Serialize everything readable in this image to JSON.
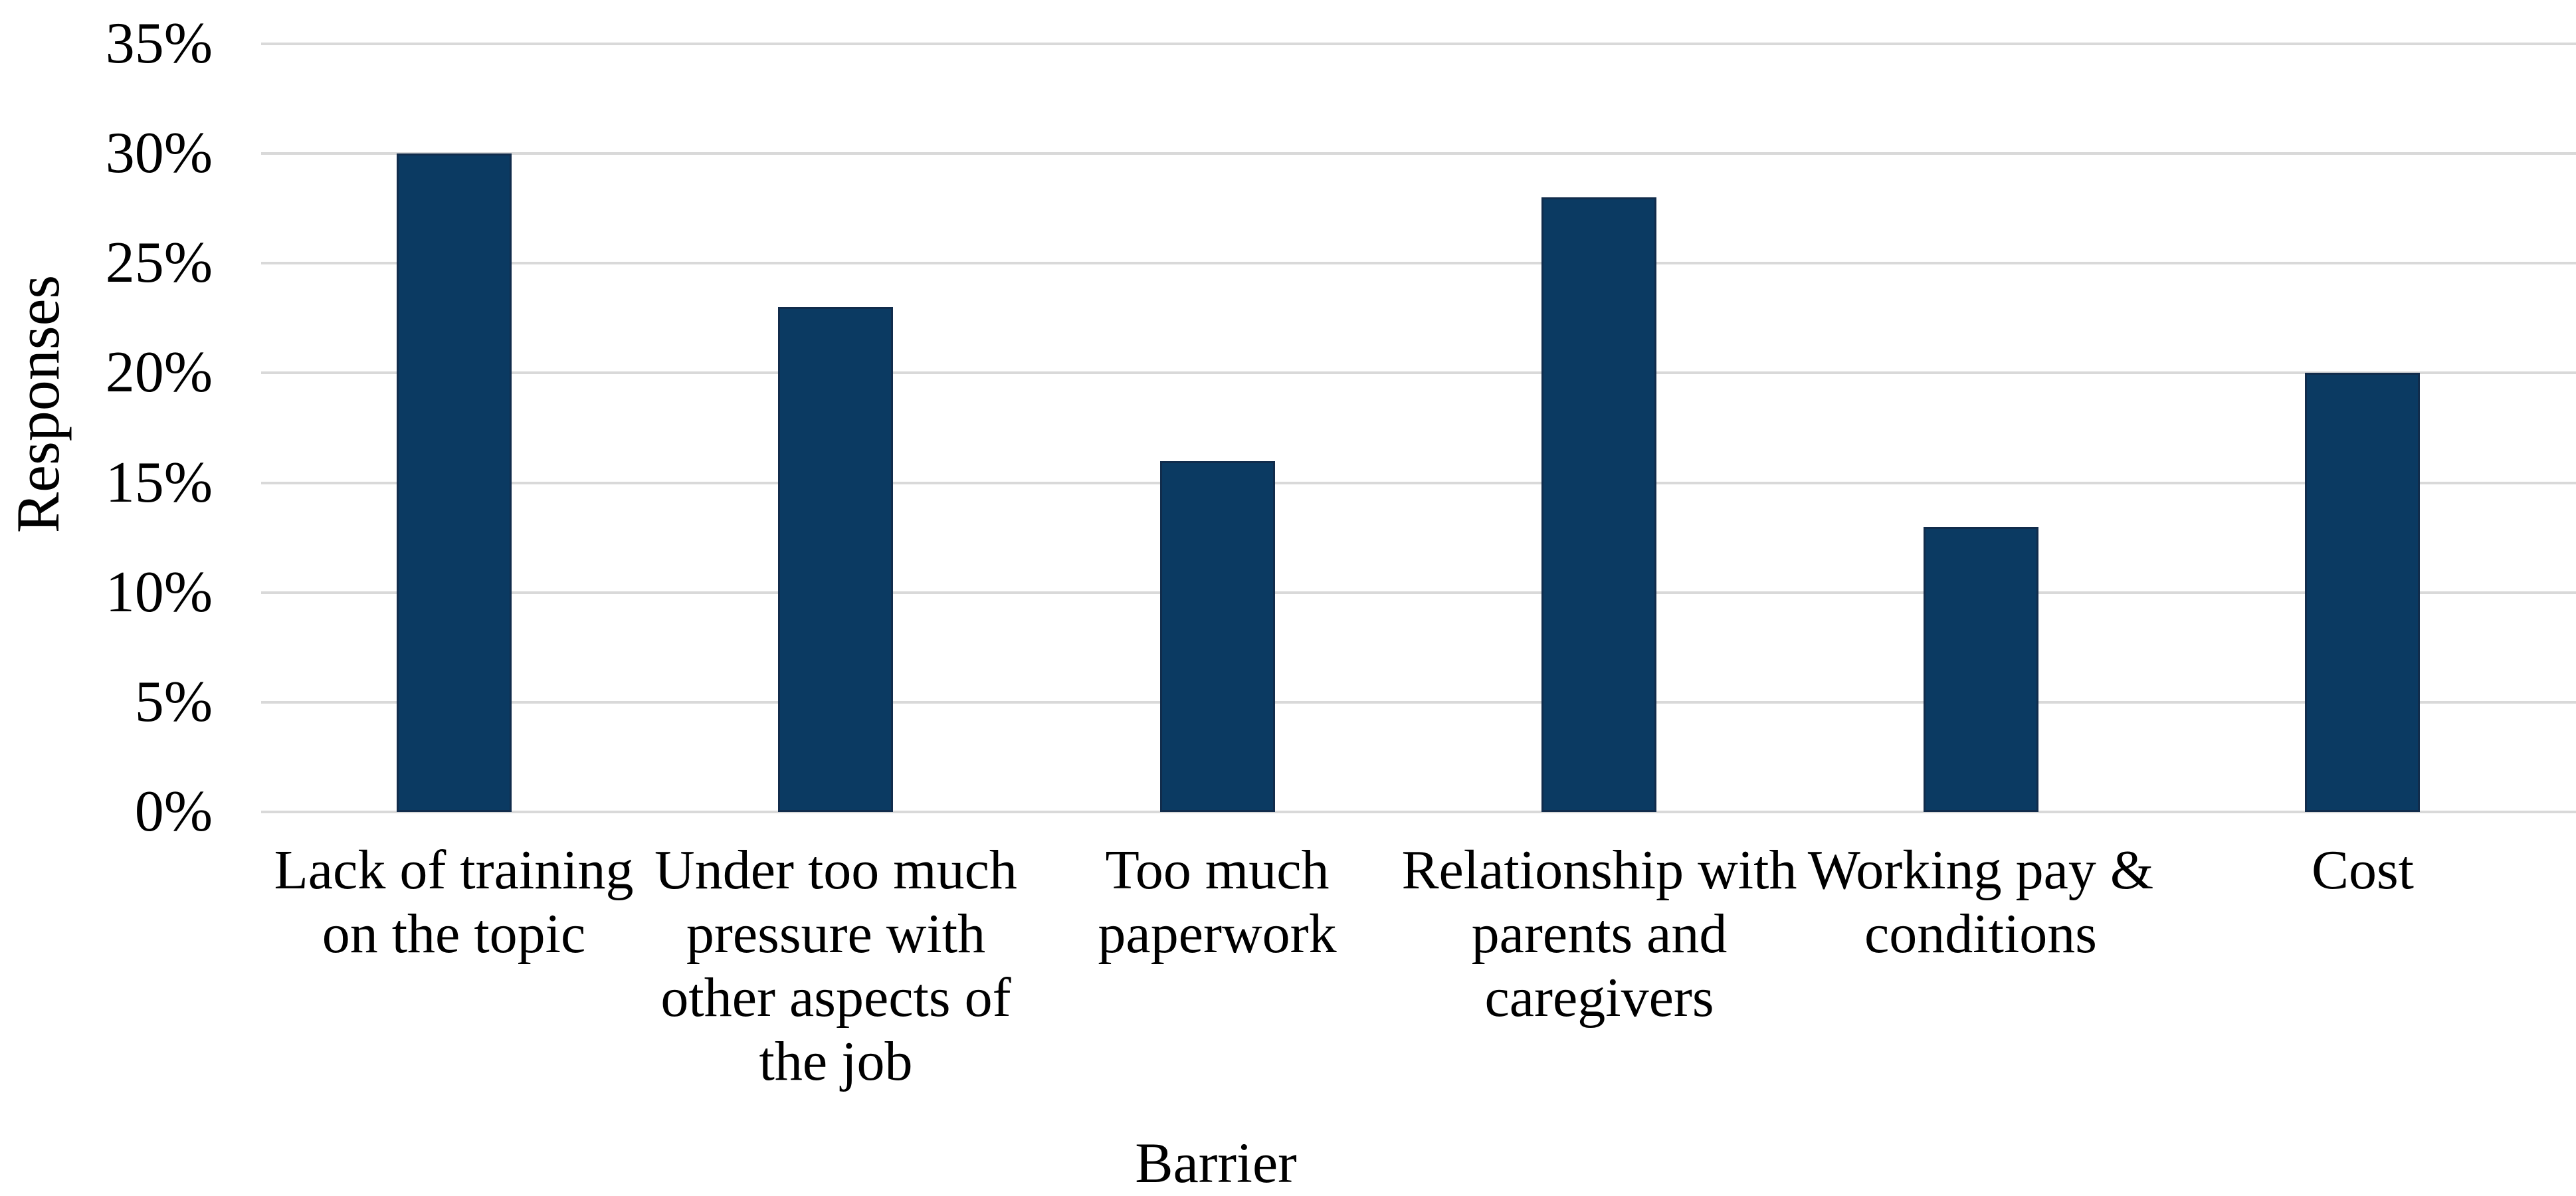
{
  "chart_data": {
    "type": "bar",
    "title": "",
    "xlabel": "Barrier",
    "ylabel": "Responses",
    "categories": [
      "Lack of training\non the topic",
      "Under too much\npressure with\nother aspects of\nthe job",
      "Too much\npaperwork",
      "Relationship with\nparents and\ncaregivers",
      "Working pay &\nconditions",
      "Cost"
    ],
    "values": [
      30,
      23,
      16,
      28,
      13,
      20
    ],
    "value_unit": "%",
    "ylim": [
      0,
      35
    ],
    "ytick_step": 5,
    "ytick_labels": [
      "0%",
      "5%",
      "10%",
      "15%",
      "20%",
      "25%",
      "30%",
      "35%"
    ],
    "grid": "horizontal",
    "legend": "none",
    "colors": {
      "bar_fill": "#0b3a62",
      "bar_border": "#112c4c",
      "gridline": "#d9d9d9",
      "text": "#000000",
      "background": "#ffffff"
    }
  }
}
